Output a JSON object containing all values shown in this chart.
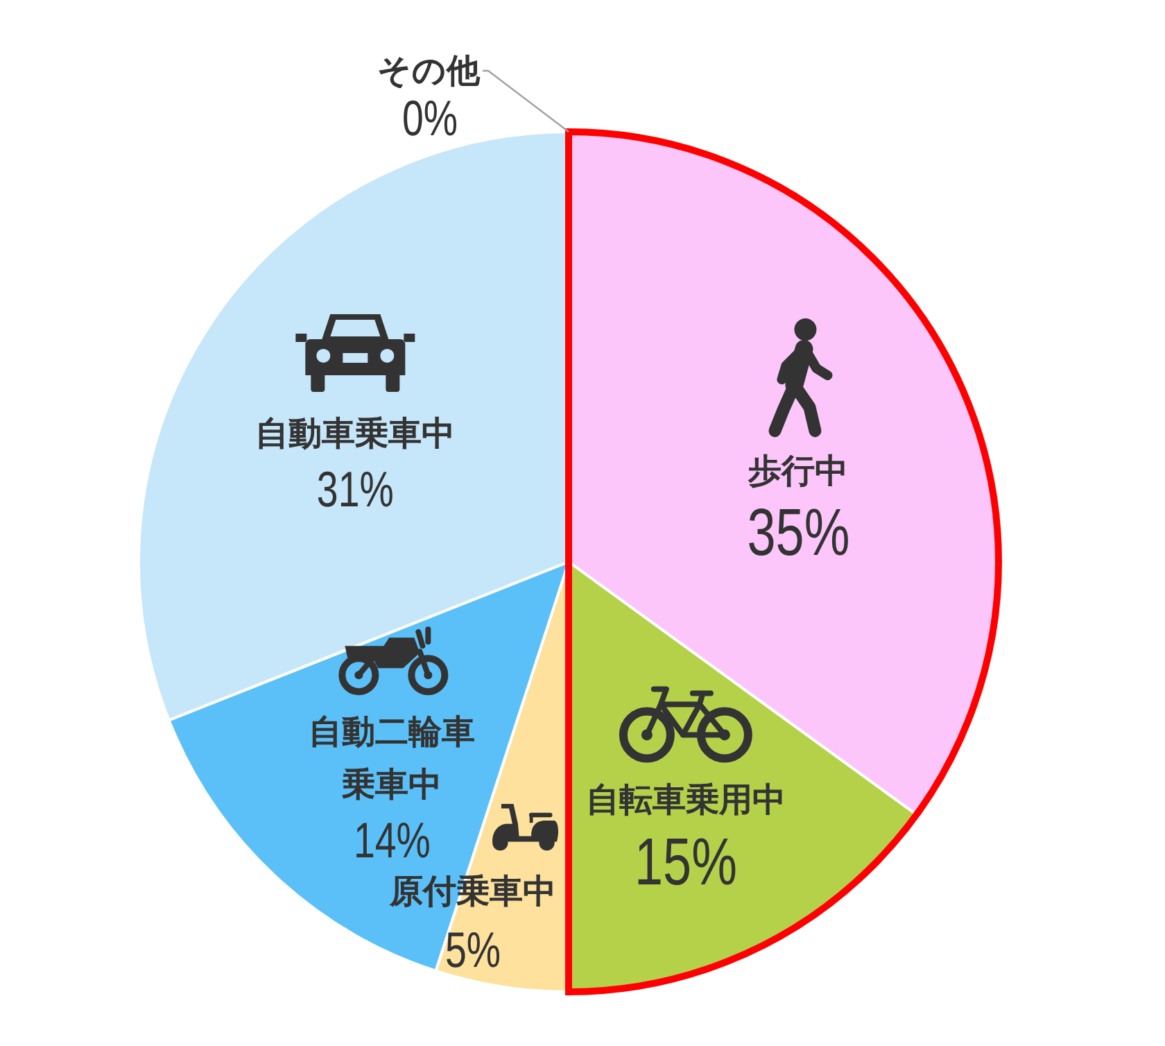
{
  "chart_data": {
    "type": "pie",
    "categories": [
      "歩行中",
      "自転車乗用中",
      "原付乗車中",
      "自動二輪車乗車中",
      "自動車乗車中",
      "その他"
    ],
    "values": [
      35,
      15,
      5,
      14,
      31,
      0
    ],
    "colors": [
      "#fcc6fb",
      "#b5d14a",
      "#fde19c",
      "#5bc0f8",
      "#c6e6f9",
      "#92d050"
    ],
    "value_labels": [
      "35%",
      "15%",
      "5%",
      "14%",
      "31%",
      "0%"
    ]
  }
}
